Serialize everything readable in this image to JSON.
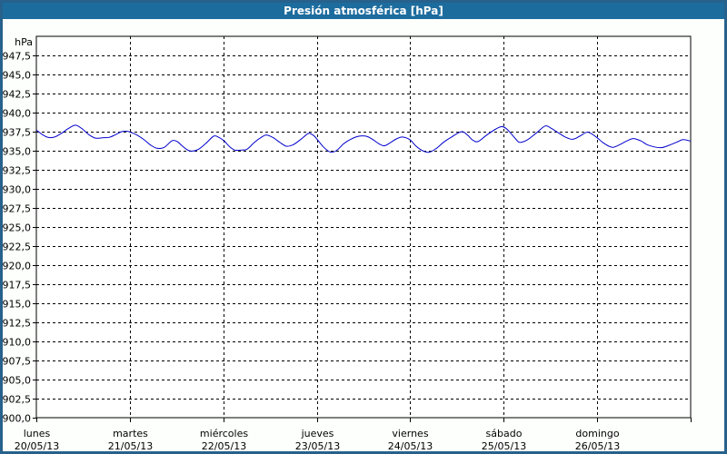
{
  "window": {
    "title": "Presión atmosférica [hPa]"
  },
  "colors": {
    "titlebar": "#1d6c9e",
    "window_border": "#27618c",
    "line": "#0000cc",
    "grid": "#000000",
    "axis": "#000000",
    "label_text": "#000000",
    "plot_background": "#ffffff"
  },
  "chart_data": {
    "type": "line",
    "title": "Presión atmosférica [hPa]",
    "y_unit_label": "hPa",
    "ylim": [
      900,
      950
    ],
    "y_tick_step": 2.5,
    "grid": "dashed",
    "legend": "none",
    "y_tick_labels": [
      "947,5",
      "945,0",
      "942,5",
      "940,0",
      "937,5",
      "935,0",
      "932,5",
      "930,0",
      "927,5",
      "925,0",
      "922,5",
      "920,0",
      "917,5",
      "915,0",
      "912,5",
      "910,0",
      "907,5",
      "905,0",
      "902,5",
      "900,0"
    ],
    "y_tick_values": [
      947.5,
      945.0,
      942.5,
      940.0,
      937.5,
      935.0,
      932.5,
      930.0,
      927.5,
      925.0,
      922.5,
      920.0,
      917.5,
      915.0,
      912.5,
      910.0,
      907.5,
      905.0,
      902.5,
      900.0
    ],
    "x_range_hours": [
      0,
      168
    ],
    "x_days": [
      {
        "name": "lunes",
        "date": "20/05/13"
      },
      {
        "name": "martes",
        "date": "21/05/13"
      },
      {
        "name": "miércoles",
        "date": "22/05/13"
      },
      {
        "name": "jueves",
        "date": "23/05/13"
      },
      {
        "name": "viernes",
        "date": "24/05/13"
      },
      {
        "name": "sábado",
        "date": "25/05/13"
      },
      {
        "name": "domingo",
        "date": "26/05/13"
      }
    ],
    "series": [
      {
        "name": "Presión atmosférica",
        "points": [
          [
            0,
            937.7
          ],
          [
            1.6,
            937.1
          ],
          [
            3.0,
            936.75
          ],
          [
            4.7,
            936.8
          ],
          [
            6.5,
            937.3
          ],
          [
            8.2,
            937.9
          ],
          [
            10.0,
            938.35
          ],
          [
            11.7,
            937.9
          ],
          [
            13.5,
            937.1
          ],
          [
            15.2,
            936.65
          ],
          [
            17.0,
            936.7
          ],
          [
            18.7,
            936.75
          ],
          [
            20.3,
            937.1
          ],
          [
            21.9,
            937.5
          ],
          [
            23.3,
            937.55
          ],
          [
            24.0,
            937.45
          ],
          [
            25.7,
            937.1
          ],
          [
            27.5,
            936.5
          ],
          [
            29.2,
            935.8
          ],
          [
            30.8,
            935.35
          ],
          [
            32.7,
            935.4
          ],
          [
            34.1,
            936.0
          ],
          [
            35.0,
            936.35
          ],
          [
            36.2,
            936.2
          ],
          [
            37.3,
            935.7
          ],
          [
            38.5,
            935.2
          ],
          [
            39.7,
            934.95
          ],
          [
            41.5,
            935.15
          ],
          [
            43.4,
            935.9
          ],
          [
            45.5,
            936.9
          ],
          [
            46.7,
            936.8
          ],
          [
            48.1,
            936.35
          ],
          [
            49.5,
            935.6
          ],
          [
            50.9,
            935.1
          ],
          [
            52.7,
            935.1
          ],
          [
            54.1,
            935.2
          ],
          [
            56.0,
            936.1
          ],
          [
            57.6,
            936.7
          ],
          [
            59.0,
            937.05
          ],
          [
            60.7,
            936.75
          ],
          [
            62.5,
            936.1
          ],
          [
            64.2,
            935.6
          ],
          [
            65.8,
            935.75
          ],
          [
            67.7,
            936.4
          ],
          [
            69.1,
            937.0
          ],
          [
            70.0,
            937.3
          ],
          [
            71.2,
            937.0
          ],
          [
            72.1,
            936.5
          ],
          [
            73.7,
            935.5
          ],
          [
            75.4,
            934.85
          ],
          [
            77.0,
            935.0
          ],
          [
            78.9,
            935.9
          ],
          [
            80.7,
            936.5
          ],
          [
            82.8,
            936.9
          ],
          [
            84.7,
            936.9
          ],
          [
            86.3,
            936.5
          ],
          [
            88.0,
            935.9
          ],
          [
            89.4,
            935.65
          ],
          [
            91.0,
            936.1
          ],
          [
            92.6,
            936.6
          ],
          [
            94.0,
            936.8
          ],
          [
            95.9,
            936.45
          ],
          [
            97.5,
            935.6
          ],
          [
            99.2,
            935.0
          ],
          [
            100.8,
            934.8
          ],
          [
            102.7,
            935.3
          ],
          [
            104.5,
            936.1
          ],
          [
            106.6,
            936.8
          ],
          [
            109.2,
            937.5
          ],
          [
            110.8,
            937.0
          ],
          [
            112.0,
            936.4
          ],
          [
            113.4,
            936.2
          ],
          [
            115.5,
            937.0
          ],
          [
            117.8,
            937.8
          ],
          [
            119.5,
            938.15
          ],
          [
            120.9,
            937.8
          ],
          [
            123.0,
            936.6
          ],
          [
            124.1,
            936.1
          ],
          [
            126.0,
            936.4
          ],
          [
            128.3,
            937.3
          ],
          [
            130.7,
            938.25
          ],
          [
            132.3,
            937.9
          ],
          [
            134.2,
            937.3
          ],
          [
            135.8,
            936.8
          ],
          [
            137.7,
            936.5
          ],
          [
            139.5,
            936.9
          ],
          [
            141.2,
            937.4
          ],
          [
            142.3,
            937.3
          ],
          [
            144.0,
            936.7
          ],
          [
            145.4,
            936.1
          ],
          [
            147.0,
            935.6
          ],
          [
            148.2,
            935.45
          ],
          [
            149.8,
            935.8
          ],
          [
            151.7,
            936.3
          ],
          [
            153.3,
            936.6
          ],
          [
            155.2,
            936.3
          ],
          [
            156.8,
            935.8
          ],
          [
            158.7,
            935.5
          ],
          [
            160.5,
            935.4
          ],
          [
            162.4,
            935.7
          ],
          [
            164.3,
            936.1
          ],
          [
            166.1,
            936.45
          ],
          [
            168.0,
            936.25
          ]
        ]
      }
    ]
  }
}
